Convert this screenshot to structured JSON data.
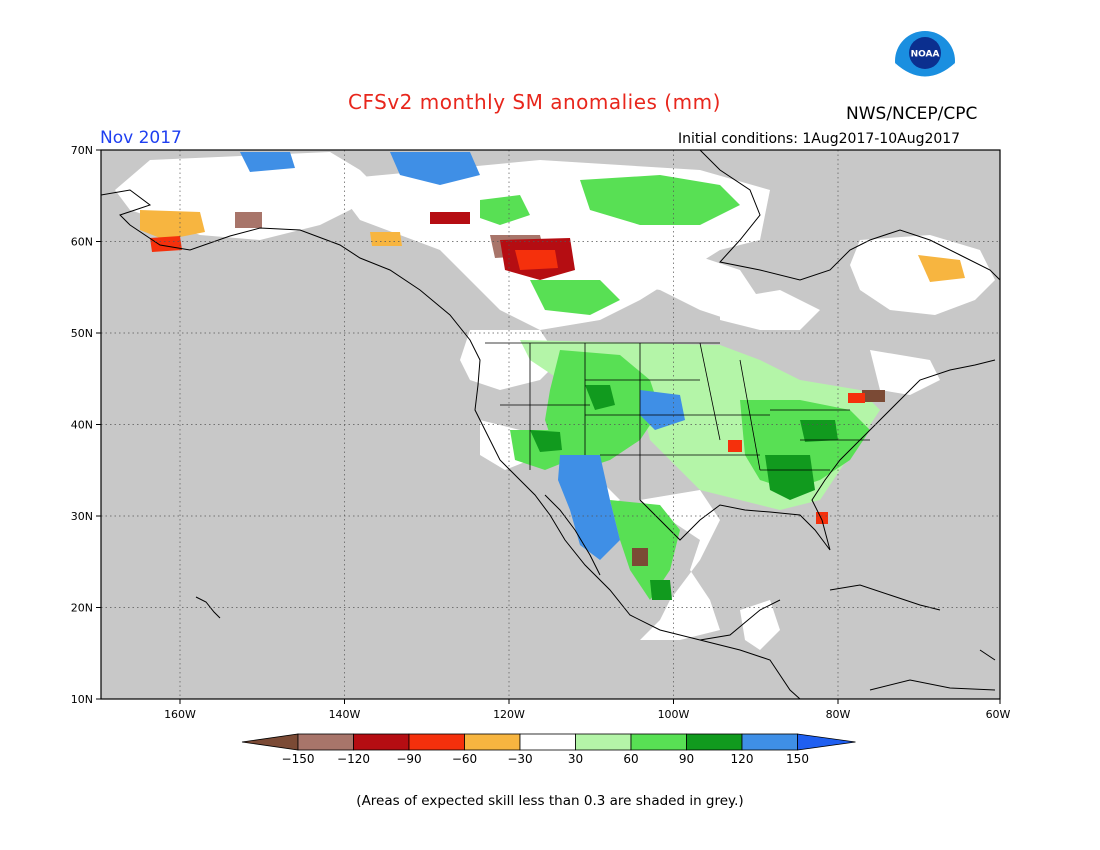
{
  "header": {
    "title": "CFSv2 monthly SM anomalies (mm)",
    "agency": "NWS/NCEP/CPC",
    "logo_text": "NOAA",
    "month": "Nov 2017",
    "initial_conditions": "Initial conditions: 1Aug2017-10Aug2017"
  },
  "footer_note": "(Areas of expected skill less than 0.3 are shaded in grey.)",
  "map": {
    "projection": "lat-lon",
    "lon_range": [
      -172,
      -60
    ],
    "lat_range": [
      10,
      70
    ],
    "lat_labels": [
      "70N",
      "60N",
      "50N",
      "40N",
      "30N",
      "20N",
      "10N"
    ],
    "lon_labels": [
      "160W",
      "140W",
      "120W",
      "100W",
      "80W",
      "60W"
    ],
    "grid": true,
    "background_color": "#c8c8c8"
  },
  "colorbar": {
    "labels": [
      "−150",
      "−120",
      "−90",
      "−60",
      "−30",
      "30",
      "60",
      "90",
      "120",
      "150"
    ],
    "colors": [
      "#7b4a35",
      "#a8756a",
      "#b50d12",
      "#f5300c",
      "#f7b540",
      "#ffffff",
      "#b4f5a8",
      "#58e054",
      "#119a1e",
      "#3f8fe6",
      "#1f5ff0"
    ]
  }
}
